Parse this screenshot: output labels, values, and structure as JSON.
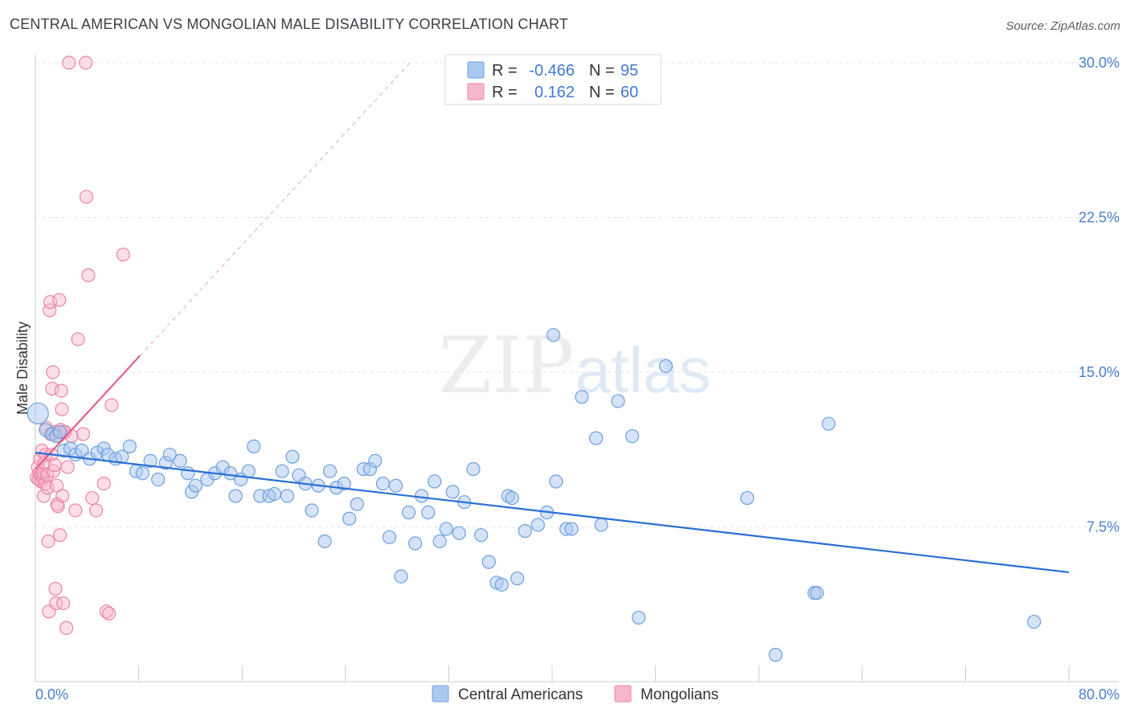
{
  "title": "CENTRAL AMERICAN VS MONGOLIAN MALE DISABILITY CORRELATION CHART",
  "source": "Source: ZipAtlas.com",
  "watermark": {
    "zip": "ZIP",
    "atlas": "atlas"
  },
  "colors": {
    "blue_fill": "#aac8f0",
    "blue_stroke": "#6f9fdf",
    "blue_line": "#2a6fd4",
    "pink_fill": "#f6b8cc",
    "pink_stroke": "#ec84a4",
    "pink_line": "#e0608a",
    "axis_text": "#4a7fd0"
  },
  "stats_legend": {
    "rows": [
      {
        "r_label": "R =",
        "r_value": "-0.466",
        "n_label": "N =",
        "n_value": "95"
      },
      {
        "r_label": "R =",
        "r_value": "0.162",
        "n_label": "N =",
        "n_value": "60"
      }
    ]
  },
  "bottom_legend": [
    "Central Americans",
    "Mongolians"
  ],
  "chart_data": {
    "type": "scatter",
    "title": "CENTRAL AMERICAN VS MONGOLIAN MALE DISABILITY CORRELATION CHART",
    "xlabel": "",
    "ylabel": "Male Disability",
    "xlim": [
      0,
      80
    ],
    "ylim": [
      0,
      30
    ],
    "x_tick_labels": [
      "0.0%",
      "80.0%"
    ],
    "y_ticks": [
      7.5,
      15.0,
      22.5,
      30.0
    ],
    "y_tick_labels": [
      "7.5%",
      "15.0%",
      "22.5%",
      "30.0%"
    ],
    "grid": true,
    "legend_position": "top-center",
    "series": [
      {
        "name": "Central Americans",
        "r": -0.466,
        "n": 95,
        "trend": {
          "x0": 0.0,
          "y0": 11.1,
          "x1": 80.0,
          "y1": 5.3
        },
        "points": [
          [
            0.2,
            13.0
          ],
          [
            0.8,
            12.2
          ],
          [
            1.3,
            12.0
          ],
          [
            1.6,
            11.9
          ],
          [
            1.9,
            12.1
          ],
          [
            2.2,
            11.2
          ],
          [
            2.7,
            11.3
          ],
          [
            3.1,
            11.0
          ],
          [
            3.6,
            11.2
          ],
          [
            4.2,
            10.8
          ],
          [
            4.8,
            11.1
          ],
          [
            5.3,
            11.3
          ],
          [
            5.6,
            11.0
          ],
          [
            6.2,
            10.8
          ],
          [
            6.7,
            10.9
          ],
          [
            7.3,
            11.4
          ],
          [
            7.8,
            10.2
          ],
          [
            8.3,
            10.1
          ],
          [
            8.9,
            10.7
          ],
          [
            9.5,
            9.8
          ],
          [
            10.1,
            10.6
          ],
          [
            10.4,
            11.0
          ],
          [
            11.2,
            10.7
          ],
          [
            11.8,
            10.1
          ],
          [
            12.1,
            9.2
          ],
          [
            12.4,
            9.5
          ],
          [
            13.3,
            9.8
          ],
          [
            13.9,
            10.1
          ],
          [
            14.5,
            10.4
          ],
          [
            15.1,
            10.1
          ],
          [
            15.5,
            9.0
          ],
          [
            15.9,
            9.8
          ],
          [
            16.5,
            10.2
          ],
          [
            16.9,
            11.4
          ],
          [
            17.4,
            9.0
          ],
          [
            18.1,
            9.0
          ],
          [
            18.5,
            9.1
          ],
          [
            19.1,
            10.2
          ],
          [
            19.5,
            9.0
          ],
          [
            19.9,
            10.9
          ],
          [
            20.4,
            10.0
          ],
          [
            20.9,
            9.6
          ],
          [
            21.4,
            8.3
          ],
          [
            21.9,
            9.5
          ],
          [
            22.4,
            6.8
          ],
          [
            22.8,
            10.2
          ],
          [
            23.3,
            9.4
          ],
          [
            23.9,
            9.6
          ],
          [
            24.3,
            7.9
          ],
          [
            24.9,
            8.6
          ],
          [
            25.4,
            10.3
          ],
          [
            25.9,
            10.3
          ],
          [
            26.3,
            10.7
          ],
          [
            26.9,
            9.6
          ],
          [
            27.4,
            7.0
          ],
          [
            27.9,
            9.5
          ],
          [
            28.3,
            5.1
          ],
          [
            28.9,
            8.2
          ],
          [
            29.4,
            6.7
          ],
          [
            29.9,
            9.0
          ],
          [
            30.4,
            8.2
          ],
          [
            30.9,
            9.7
          ],
          [
            31.3,
            6.8
          ],
          [
            31.8,
            7.4
          ],
          [
            32.3,
            9.2
          ],
          [
            32.8,
            7.2
          ],
          [
            33.2,
            8.7
          ],
          [
            33.9,
            10.3
          ],
          [
            34.5,
            7.1
          ],
          [
            35.1,
            5.8
          ],
          [
            35.7,
            4.8
          ],
          [
            36.1,
            4.7
          ],
          [
            36.6,
            9.0
          ],
          [
            36.9,
            8.9
          ],
          [
            37.3,
            5.0
          ],
          [
            37.9,
            7.3
          ],
          [
            38.9,
            7.6
          ],
          [
            39.6,
            8.2
          ],
          [
            40.1,
            16.8
          ],
          [
            40.3,
            9.7
          ],
          [
            41.1,
            7.4
          ],
          [
            41.5,
            7.4
          ],
          [
            42.3,
            13.8
          ],
          [
            43.4,
            11.8
          ],
          [
            43.8,
            7.6
          ],
          [
            45.1,
            13.6
          ],
          [
            46.2,
            11.9
          ],
          [
            46.7,
            3.1
          ],
          [
            48.8,
            15.3
          ],
          [
            55.1,
            8.9
          ],
          [
            57.3,
            1.3
          ],
          [
            60.3,
            4.3
          ],
          [
            60.5,
            4.3
          ],
          [
            61.4,
            12.5
          ],
          [
            77.3,
            2.9
          ]
        ]
      },
      {
        "name": "Mongolians",
        "r": 0.162,
        "n": 60,
        "trend": {
          "x0": 0.0,
          "y0": 10.3,
          "x1": 8.1,
          "y1": 15.8
        },
        "trend_extension": {
          "x0": 8.1,
          "y0": 15.8,
          "x1": 29.0,
          "y1": 30.0
        },
        "points": [
          [
            0.1,
            9.9
          ],
          [
            0.2,
            10.4
          ],
          [
            0.25,
            9.8
          ],
          [
            0.3,
            10.1
          ],
          [
            0.35,
            10.8
          ],
          [
            0.4,
            10.0
          ],
          [
            0.45,
            9.7
          ],
          [
            0.5,
            11.2
          ],
          [
            0.55,
            9.9
          ],
          [
            0.6,
            10.1
          ],
          [
            0.65,
            9.0
          ],
          [
            0.7,
            10.6
          ],
          [
            0.75,
            9.6
          ],
          [
            0.8,
            11.0
          ],
          [
            0.85,
            12.3
          ],
          [
            0.9,
            10.0
          ],
          [
            0.95,
            9.4
          ],
          [
            1.0,
            6.8
          ],
          [
            1.05,
            3.4
          ],
          [
            1.1,
            18.0
          ],
          [
            1.15,
            18.4
          ],
          [
            1.2,
            12.0
          ],
          [
            1.25,
            11.0
          ],
          [
            1.3,
            14.2
          ],
          [
            1.35,
            15.0
          ],
          [
            1.4,
            10.2
          ],
          [
            1.45,
            12.1
          ],
          [
            1.5,
            10.5
          ],
          [
            1.55,
            4.5
          ],
          [
            1.6,
            3.8
          ],
          [
            1.65,
            9.5
          ],
          [
            1.7,
            8.6
          ],
          [
            1.75,
            8.5
          ],
          [
            1.8,
            11.9
          ],
          [
            1.85,
            18.5
          ],
          [
            1.9,
            7.1
          ],
          [
            1.95,
            12.2
          ],
          [
            2.0,
            14.1
          ],
          [
            2.05,
            13.2
          ],
          [
            2.1,
            9.0
          ],
          [
            2.15,
            3.8
          ],
          [
            2.2,
            12.1
          ],
          [
            2.3,
            12.1
          ],
          [
            2.4,
            2.6
          ],
          [
            2.5,
            10.4
          ],
          [
            2.6,
            30.0
          ],
          [
            2.8,
            11.9
          ],
          [
            3.1,
            8.3
          ],
          [
            3.3,
            16.6
          ],
          [
            3.7,
            12.0
          ],
          [
            3.9,
            30.0
          ],
          [
            3.95,
            23.5
          ],
          [
            4.1,
            19.7
          ],
          [
            4.4,
            8.9
          ],
          [
            4.7,
            8.3
          ],
          [
            5.3,
            9.6
          ],
          [
            5.5,
            3.4
          ],
          [
            5.7,
            3.3
          ],
          [
            5.9,
            13.4
          ],
          [
            6.8,
            20.7
          ]
        ]
      }
    ]
  }
}
